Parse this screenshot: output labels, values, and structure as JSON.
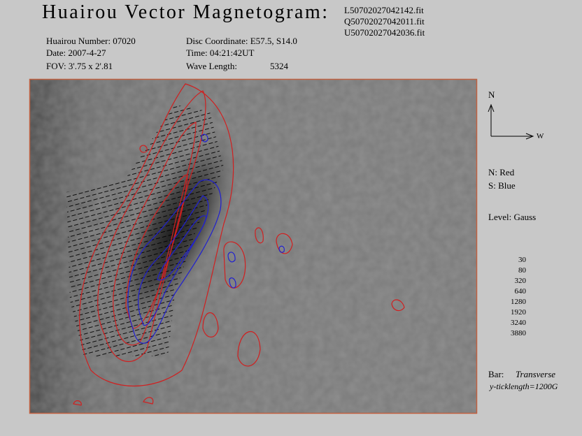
{
  "header": {
    "title": "Huairou Vector Magnetogram:",
    "files": [
      "L50702027042142.fit",
      "Q50702027042011.fit",
      "U50702027042036.fit"
    ]
  },
  "info": {
    "number": "Huairou Number: 07020",
    "date": "Date: 2007-4-27",
    "fov": "FOV:  3'.75 x 2'.81",
    "disc": "Disc Coordinate:  E57.5, S14.0",
    "time": "Time: 04:21:42UT",
    "wave_label": "Wave Length:",
    "wave_value": "5324"
  },
  "legend": {
    "north": "N",
    "west": "W",
    "north_color": "N: Red",
    "south_color": "S: Blue",
    "level_title": "Level: Gauss",
    "levels": [
      30,
      80,
      320,
      640,
      1280,
      1920,
      3240,
      3880
    ],
    "bar_label": "Bar:",
    "bar_type": "Transverse",
    "tick_length": "y-ticklength=1200G"
  }
}
